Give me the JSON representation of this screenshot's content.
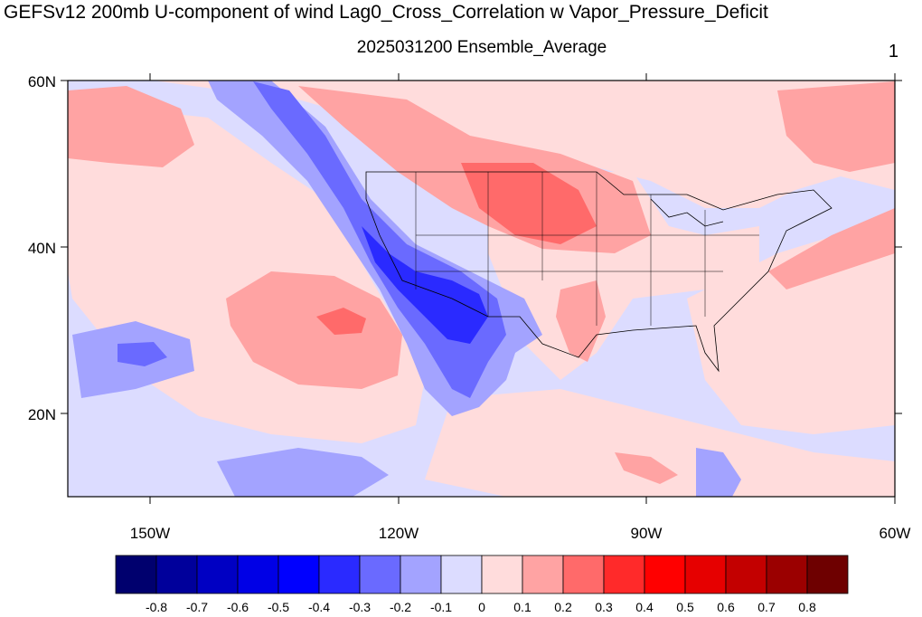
{
  "title": "GEFSv12 200mb U-component of wind Lag0_Cross_Correlation w Vapor_Pressure_Deficit",
  "subtitle": "2025031200 Ensemble_Average",
  "panel_number": "1",
  "map": {
    "lon_range": [
      -160,
      -60
    ],
    "lat_range": [
      10,
      60
    ],
    "x_tick_labels": [
      "150W",
      "120W",
      "90W",
      "60W"
    ],
    "y_tick_labels": [
      "20N",
      "40N",
      "60N"
    ]
  },
  "colorbar": {
    "colors": [
      "#00006e",
      "#00009b",
      "#0000c3",
      "#0000e6",
      "#0000ff",
      "#2a2aff",
      "#6a6aff",
      "#a3a3ff",
      "#dcdcff",
      "#ffdcdc",
      "#ffa3a3",
      "#ff6a6a",
      "#ff2a2a",
      "#ff0000",
      "#e60000",
      "#c30000",
      "#9b0000",
      "#6e0000"
    ],
    "labels": [
      "-0.8",
      "-0.7",
      "-0.6",
      "-0.5",
      "-0.4",
      "-0.3",
      "-0.2",
      "-0.1",
      "0",
      "0.1",
      "0.2",
      "0.3",
      "0.4",
      "0.5",
      "0.6",
      "0.7",
      "0.8"
    ]
  }
}
